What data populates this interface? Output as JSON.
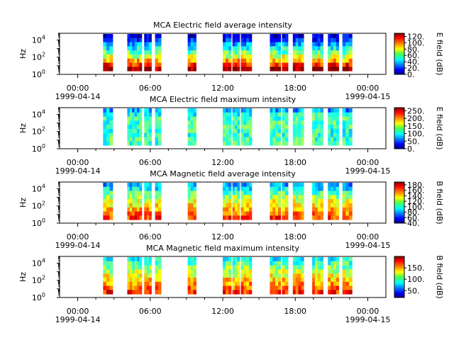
{
  "chart_data": [
    {
      "type": "heatmap",
      "title": "MCA  Electric field average intensity",
      "ylabel": "Hz",
      "yscale": "log",
      "ylim": [
        1,
        60000
      ],
      "y_ticks": [
        {
          "base": "10",
          "exp": "0"
        },
        {
          "base": "10",
          "exp": "2"
        },
        {
          "base": "10",
          "exp": "4"
        }
      ],
      "colorbar": {
        "label": "E field (dB)",
        "range": [
          0,
          130
        ],
        "ticks": [
          "0.",
          "20.",
          "40.",
          "60.",
          "80.",
          "100.",
          "120."
        ]
      },
      "palette": "jet",
      "ridge_steps": [
        8,
        16,
        28,
        38,
        48,
        58,
        70,
        84,
        99
      ]
    },
    {
      "type": "heatmap",
      "title": "MCA  Electric field maximum intensity",
      "ylabel": "Hz",
      "yscale": "log",
      "ylim": [
        1,
        60000
      ],
      "y_ticks": [
        {
          "base": "10",
          "exp": "0"
        },
        {
          "base": "10",
          "exp": "2"
        },
        {
          "base": "10",
          "exp": "4"
        }
      ],
      "colorbar": {
        "label": "E field (dB)",
        "range": [
          0,
          270
        ],
        "ticks": [
          "0.",
          "50.",
          "100.",
          "150.",
          "200.",
          "250."
        ]
      },
      "palette": "jet",
      "ridge_steps": [
        28,
        40,
        44,
        44,
        44,
        42,
        42,
        44,
        44
      ]
    },
    {
      "type": "heatmap",
      "title": "MCA  Magnetic field average intensity",
      "ylabel": "Hz",
      "yscale": "log",
      "ylim": [
        1,
        60000
      ],
      "y_ticks": [
        {
          "base": "10",
          "exp": "0"
        },
        {
          "base": "10",
          "exp": "2"
        },
        {
          "base": "10",
          "exp": "4"
        }
      ],
      "colorbar": {
        "label": "B field (dB)",
        "range": [
          40,
          190
        ],
        "ticks": [
          "40.",
          "60.",
          "80.",
          "100.",
          "120.",
          "140.",
          "160.",
          "180."
        ]
      },
      "palette": "jet",
      "ridge_steps": [
        28,
        36,
        46,
        54,
        60,
        64,
        70,
        76,
        82
      ]
    },
    {
      "type": "heatmap",
      "title": "MCA  Magnetic field maximum intensity",
      "ylabel": "Hz",
      "yscale": "log",
      "ylim": [
        1,
        60000
      ],
      "y_ticks": [
        {
          "base": "10",
          "exp": "0"
        },
        {
          "base": "10",
          "exp": "2"
        },
        {
          "base": "10",
          "exp": "4"
        }
      ],
      "colorbar": {
        "label": "B field (dB)",
        "range": [
          20,
          200
        ],
        "ticks": [
          "50.",
          "100.",
          "150."
        ]
      },
      "palette": "jet",
      "ridge_steps": [
        38,
        44,
        50,
        56,
        62,
        68,
        72,
        78,
        84
      ]
    }
  ],
  "x_axis": {
    "range_hours": [
      -1.5,
      25.5
    ],
    "ticks": [
      {
        "hour": 0,
        "label": "00:00",
        "date": "1999-04-14"
      },
      {
        "hour": 6,
        "label": "06:00",
        "date": ""
      },
      {
        "hour": 12,
        "label": "12:00",
        "date": ""
      },
      {
        "hour": 18,
        "label": "18:00",
        "date": ""
      },
      {
        "hour": 24,
        "label": "00:00",
        "date": "1999-04-15"
      }
    ],
    "minor_tick_hours": [
      1.5,
      3,
      4.5,
      7.5,
      9,
      10.5,
      13.5,
      15,
      16.5,
      19.5,
      21,
      22.5
    ]
  },
  "data_segments_hours": [
    [
      2.1,
      2.9
    ],
    [
      4.1,
      4.7
    ],
    [
      4.7,
      5.3
    ],
    [
      5.5,
      6.1
    ],
    [
      6.4,
      6.9
    ],
    [
      9.1,
      9.8
    ],
    [
      12.0,
      12.7
    ],
    [
      12.8,
      13.4
    ],
    [
      13.5,
      14.4
    ],
    [
      15.9,
      16.8
    ],
    [
      16.9,
      17.4
    ],
    [
      17.8,
      18.7
    ],
    [
      19.4,
      20.3
    ],
    [
      20.7,
      21.6
    ],
    [
      21.9,
      22.7
    ]
  ]
}
